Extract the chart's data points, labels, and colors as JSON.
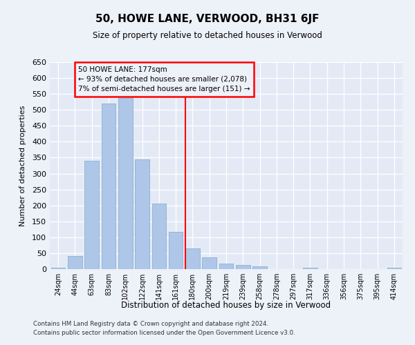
{
  "title": "50, HOWE LANE, VERWOOD, BH31 6JF",
  "subtitle": "Size of property relative to detached houses in Verwood",
  "xlabel": "Distribution of detached houses by size in Verwood",
  "ylabel": "Number of detached properties",
  "categories": [
    "24sqm",
    "44sqm",
    "63sqm",
    "83sqm",
    "102sqm",
    "122sqm",
    "141sqm",
    "161sqm",
    "180sqm",
    "200sqm",
    "219sqm",
    "239sqm",
    "258sqm",
    "278sqm",
    "297sqm",
    "317sqm",
    "336sqm",
    "356sqm",
    "375sqm",
    "395sqm",
    "414sqm"
  ],
  "values": [
    5,
    42,
    340,
    520,
    537,
    345,
    206,
    117,
    65,
    36,
    18,
    14,
    8,
    0,
    0,
    5,
    0,
    0,
    0,
    0,
    5
  ],
  "bar_color": "#aec6e8",
  "bar_edgecolor": "#8ab0d0",
  "vline_color": "red",
  "vline_xindex": 7.57,
  "annotation_text": "50 HOWE LANE: 177sqm\n← 93% of detached houses are smaller (2,078)\n7% of semi-detached houses are larger (151) →",
  "annotation_box_edgecolor": "red",
  "ylim_max": 650,
  "yticks": [
    0,
    50,
    100,
    150,
    200,
    250,
    300,
    350,
    400,
    450,
    500,
    550,
    600,
    650
  ],
  "footer1": "Contains HM Land Registry data © Crown copyright and database right 2024.",
  "footer2": "Contains public sector information licensed under the Open Government Licence v3.0.",
  "bg_color": "#edf1f8",
  "plot_bg_color": "#e4eaf5"
}
